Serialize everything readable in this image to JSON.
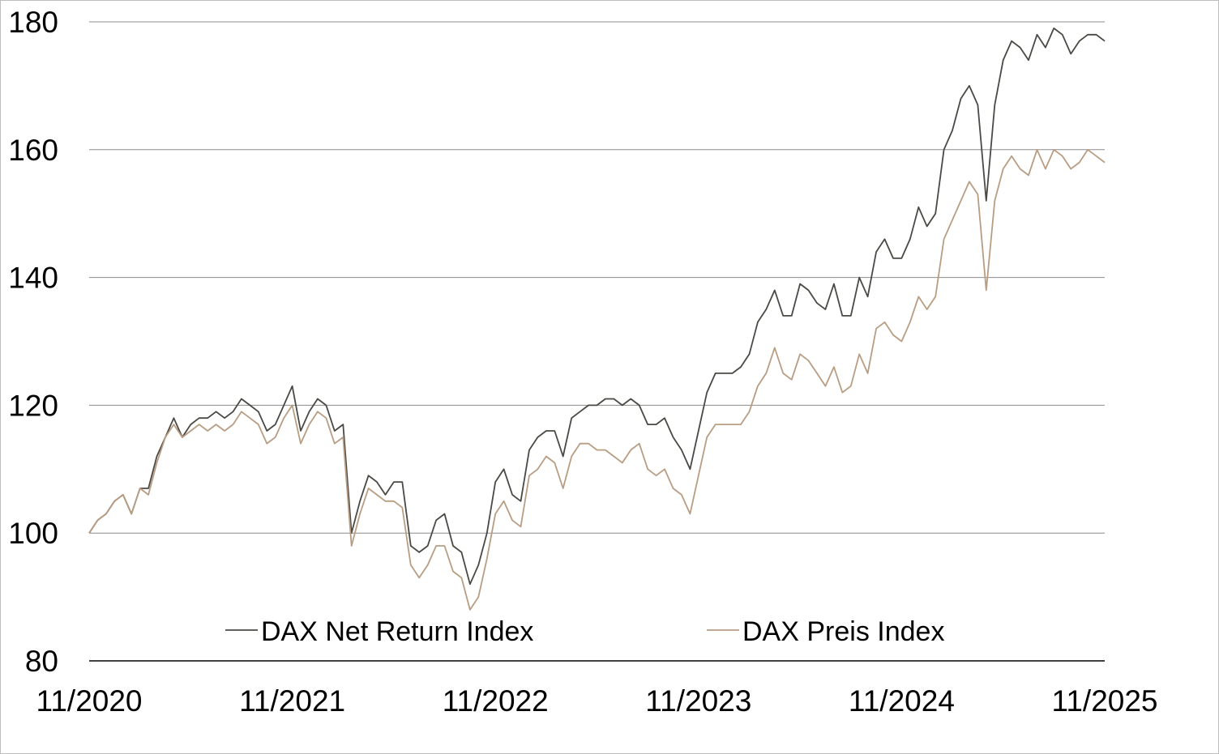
{
  "chart_data": {
    "type": "line",
    "title": "",
    "xlabel": "",
    "ylabel": "",
    "x_start": "11/2020",
    "x_step_months": 0.5,
    "x_range_months": [
      0,
      60
    ],
    "x_tick_labels": [
      "11/2020",
      "11/2021",
      "11/2022",
      "11/2023",
      "11/2024",
      "11/2025"
    ],
    "ylim": [
      80,
      180
    ],
    "y_ticks": [
      80,
      100,
      120,
      140,
      160,
      180
    ],
    "grid": "horizontal",
    "legend_position": "bottom-inside",
    "series": [
      {
        "name": "DAX Net Return Index",
        "color": "#4a4944",
        "values": [
          100,
          102,
          103,
          105,
          106,
          103,
          107,
          107,
          112,
          115,
          118,
          115,
          117,
          118,
          118,
          119,
          118,
          119,
          121,
          120,
          119,
          116,
          117,
          120,
          123,
          116,
          119,
          121,
          120,
          116,
          117,
          100,
          105,
          109,
          108,
          106,
          108,
          108,
          98,
          97,
          98,
          102,
          103,
          98,
          97,
          92,
          95,
          100,
          108,
          110,
          106,
          105,
          113,
          115,
          116,
          116,
          112,
          118,
          119,
          120,
          120,
          121,
          121,
          120,
          121,
          120,
          117,
          117,
          118,
          115,
          113,
          110,
          116,
          122,
          125,
          125,
          125,
          126,
          128,
          133,
          135,
          138,
          134,
          134,
          139,
          138,
          136,
          135,
          139,
          134,
          134,
          140,
          137,
          144,
          146,
          143,
          143,
          146,
          151,
          148,
          150,
          160,
          163,
          168,
          170,
          167,
          152,
          167,
          174,
          177,
          176,
          174,
          178,
          176,
          179,
          178,
          175,
          177,
          178,
          178,
          177
        ]
      },
      {
        "name": "DAX Preis Index",
        "color": "#b89d83",
        "values": [
          100,
          102,
          103,
          105,
          106,
          103,
          107,
          106,
          111,
          115,
          117,
          115,
          116,
          117,
          116,
          117,
          116,
          117,
          119,
          118,
          117,
          114,
          115,
          118,
          120,
          114,
          117,
          119,
          118,
          114,
          115,
          98,
          103,
          107,
          106,
          105,
          105,
          104,
          95,
          93,
          95,
          98,
          98,
          94,
          93,
          88,
          90,
          96,
          103,
          105,
          102,
          101,
          109,
          110,
          112,
          111,
          107,
          112,
          114,
          114,
          113,
          113,
          112,
          111,
          113,
          114,
          110,
          109,
          110,
          107,
          106,
          103,
          109,
          115,
          117,
          117,
          117,
          117,
          119,
          123,
          125,
          129,
          125,
          124,
          128,
          127,
          125,
          123,
          126,
          122,
          123,
          128,
          125,
          132,
          133,
          131,
          130,
          133,
          137,
          135,
          137,
          146,
          149,
          152,
          155,
          153,
          138,
          152,
          157,
          159,
          157,
          156,
          160,
          157,
          160,
          159,
          157,
          158,
          160,
          159,
          158
        ]
      }
    ]
  }
}
